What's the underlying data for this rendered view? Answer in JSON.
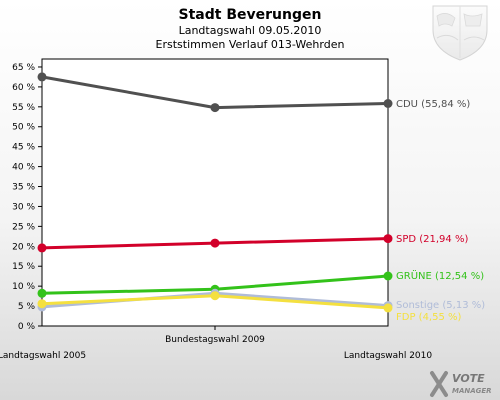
{
  "header": {
    "title": "Stadt Beverungen",
    "subtitle_1": "Landtagswahl 09.05.2010",
    "subtitle_2": "Erststimmen Verlauf 013-Wehrden"
  },
  "logo": {
    "line1": "VOTE",
    "line2": "MANAGER"
  },
  "chart_data": {
    "type": "line",
    "categories": [
      "Landtagswahl 2005",
      "Bundestagswahl 2009",
      "Landtagswahl 2010"
    ],
    "y_ticks": [
      "0 %",
      "5 %",
      "10 %",
      "15 %",
      "20 %",
      "25 %",
      "30 %",
      "35 %",
      "40 %",
      "45 %",
      "50 %",
      "55 %",
      "60 %",
      "65 %"
    ],
    "ylim": [
      0,
      67
    ],
    "grid": false,
    "series": [
      {
        "name": "CDU",
        "end_label": "CDU (55,84 %)",
        "color": "#505050",
        "values": [
          62.5,
          54.8,
          55.84
        ]
      },
      {
        "name": "SPD",
        "end_label": "SPD (21,94 %)",
        "color": "#d2002a",
        "values": [
          19.6,
          20.8,
          21.94
        ]
      },
      {
        "name": "GRÜNE",
        "end_label": "GRÜNE (12,54 %)",
        "color": "#33c21a",
        "values": [
          8.2,
          9.2,
          12.54
        ]
      },
      {
        "name": "Sonstige",
        "end_label": "Sonstige (5,13 %)",
        "color": "#b0bcd8",
        "values": [
          4.8,
          8.2,
          5.13
        ]
      },
      {
        "name": "FDP",
        "end_label": "FDP (4,55 %)",
        "color": "#f4e040",
        "values": [
          5.6,
          7.6,
          4.55
        ]
      }
    ]
  }
}
